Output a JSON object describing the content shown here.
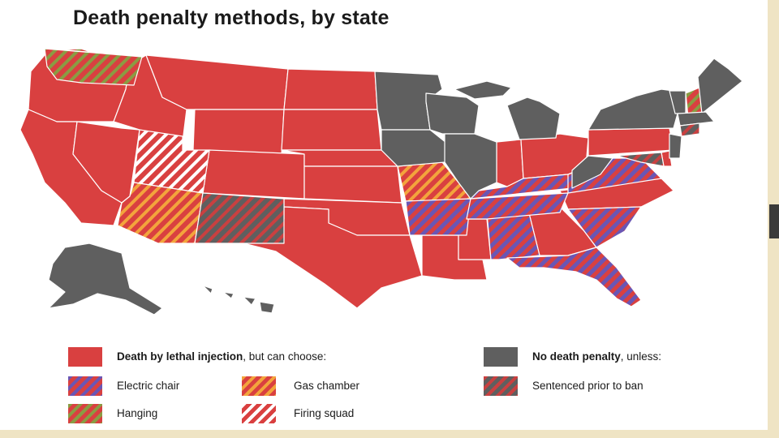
{
  "title": "Death penalty methods, by state",
  "colors": {
    "lethal_injection": "#d94040",
    "no_death_penalty": "#5f5f5f",
    "electric_chair_stripe": "#6a56b4",
    "gas_chamber_stripe": "#f3a43c",
    "hanging_stripe": "#8a9c43",
    "firing_squad_stripe": "#ffffff",
    "sentenced_prior_stripe": "#c94040"
  },
  "legend": {
    "lethal_injection": {
      "bold": "Death by lethal injection",
      "rest": ", but can choose:"
    },
    "no_death_penalty": {
      "bold": "No death penalty",
      "rest": ", unless:"
    },
    "electric_chair": "Electric chair",
    "gas_chamber": "Gas chamber",
    "hanging": "Hanging",
    "firing_squad": "Firing squad",
    "sentenced_prior": "Sentenced prior to ban"
  }
}
